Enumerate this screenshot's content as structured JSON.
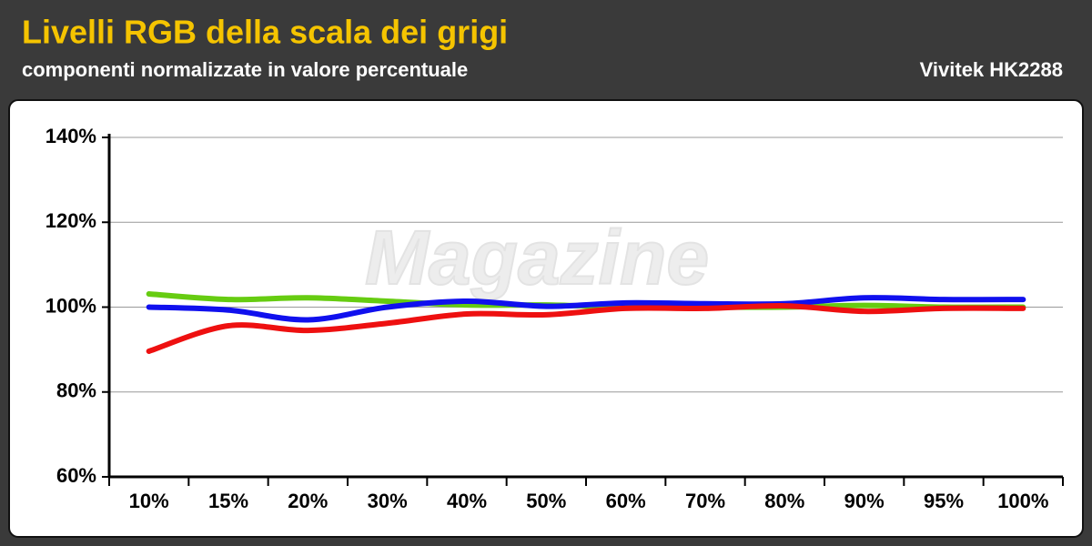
{
  "chart_data": {
    "type": "line",
    "title": "Livelli RGB della scala dei grigi",
    "subtitle": "componenti normalizzate in valore percentuale",
    "device": "Vivitek HK2288",
    "watermark": "Magazine",
    "categories": [
      "10%",
      "15%",
      "20%",
      "30%",
      "40%",
      "50%",
      "60%",
      "70%",
      "80%",
      "90%",
      "95%",
      "100%"
    ],
    "series": [
      {
        "color": "#66cc11",
        "values": [
          103.1,
          101.8,
          102.2,
          101.4,
          100.5,
          100.5,
          100,
          100,
          100,
          100.4,
          100,
          100
        ]
      },
      {
        "color": "#1010ee",
        "values": [
          100,
          99.3,
          97,
          100,
          101.4,
          100.2,
          101,
          100.8,
          100.8,
          102.2,
          101.8,
          101.8
        ]
      },
      {
        "color": "#ee1010",
        "values": [
          89.6,
          95.6,
          94.5,
          96.2,
          98.4,
          98.2,
          99.7,
          99.7,
          100.3,
          99,
          99.7,
          99.7
        ]
      }
    ],
    "ylim": [
      60,
      140
    ],
    "yticks": [
      {
        "value": 60,
        "label": "60%"
      },
      {
        "value": 80,
        "label": "80%"
      },
      {
        "value": 100,
        "label": "100%"
      },
      {
        "value": 120,
        "label": "120%"
      },
      {
        "value": 140,
        "label": "140%"
      }
    ],
    "grid": true
  }
}
